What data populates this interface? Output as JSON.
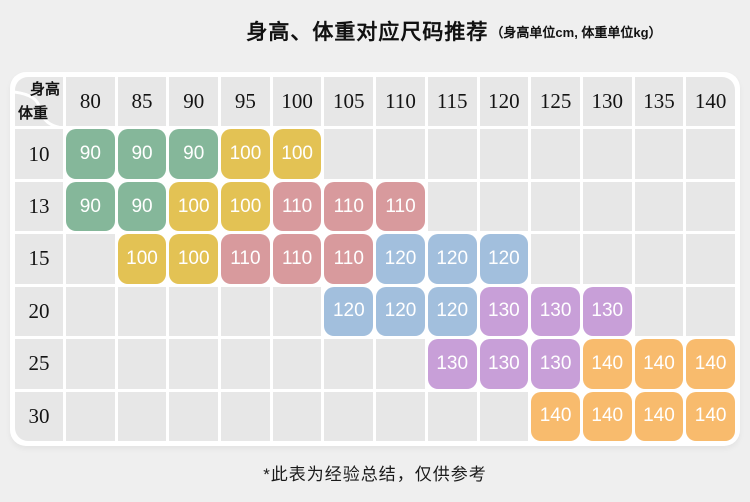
{
  "chart_data": {
    "type": "heatmap",
    "title": "身高、体重对应尺码推荐",
    "unit_note": "（身高单位cm, 体重单位kg）",
    "x_axis_label": "身高",
    "y_axis_label": "体重",
    "heights": [
      80,
      85,
      90,
      95,
      100,
      105,
      110,
      115,
      120,
      125,
      130,
      135,
      140
    ],
    "rows": [
      {
        "weight": 10,
        "sizes": [
          90,
          90,
          90,
          100,
          100,
          null,
          null,
          null,
          null,
          null,
          null,
          null,
          null
        ]
      },
      {
        "weight": 13,
        "sizes": [
          90,
          90,
          100,
          100,
          110,
          110,
          110,
          null,
          null,
          null,
          null,
          null,
          null
        ]
      },
      {
        "weight": 15,
        "sizes": [
          null,
          100,
          100,
          110,
          110,
          110,
          120,
          120,
          120,
          null,
          null,
          null,
          null
        ]
      },
      {
        "weight": 20,
        "sizes": [
          null,
          null,
          null,
          null,
          null,
          120,
          120,
          120,
          130,
          130,
          130,
          null,
          null
        ]
      },
      {
        "weight": 25,
        "sizes": [
          null,
          null,
          null,
          null,
          null,
          null,
          null,
          130,
          130,
          130,
          140,
          140,
          140
        ]
      },
      {
        "weight": 30,
        "sizes": [
          null,
          null,
          null,
          null,
          null,
          null,
          null,
          null,
          null,
          140,
          140,
          140,
          140
        ]
      }
    ],
    "size_colors": {
      "90": "#85b79a",
      "100": "#e3c254",
      "110": "#d89a9d",
      "120": "#a2bfdd",
      "130": "#c89fd8",
      "140": "#f8bb6d"
    },
    "footnote": "*此表为经验总结，仅供参考",
    "background_color": "#efefef",
    "card_color": "#ffffff",
    "cell_color": "#e7e7e7"
  }
}
